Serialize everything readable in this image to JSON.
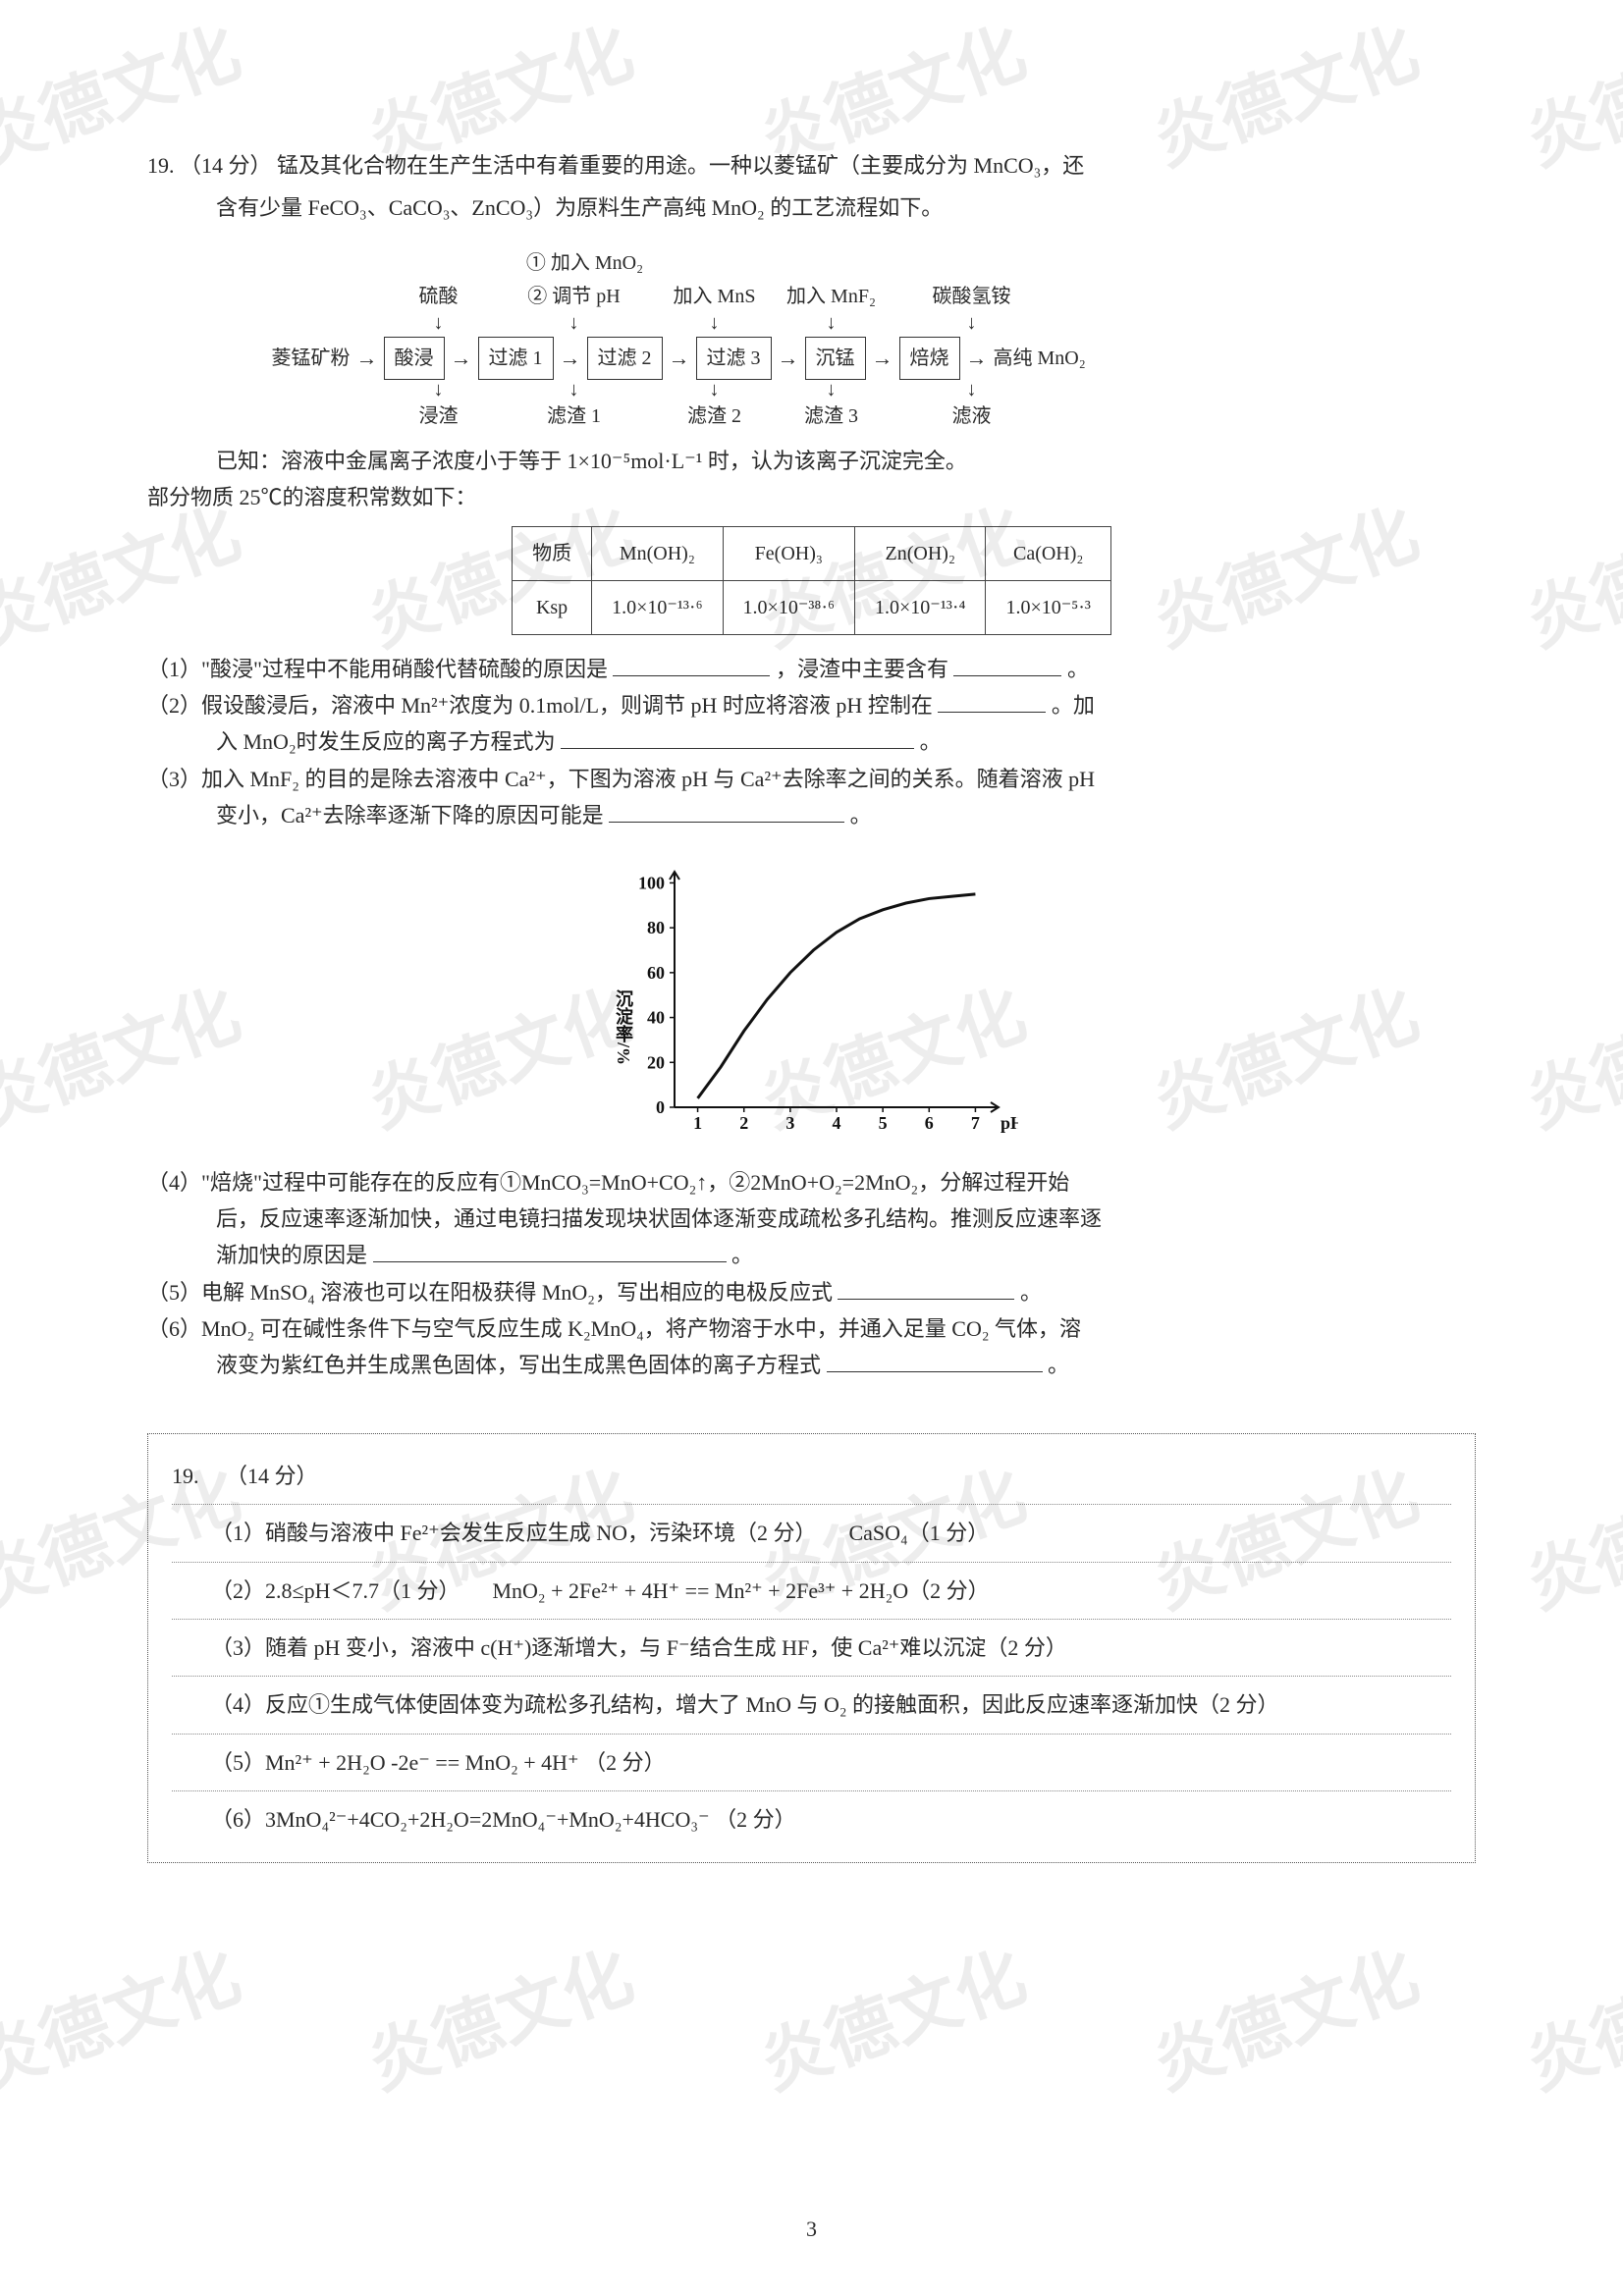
{
  "watermark": {
    "text": "炎德文化"
  },
  "question": {
    "number": "19.",
    "points": "（14 分）",
    "stem1": "锰及其化合物在生产生活中有着重要的用途。一种以菱锰矿（主要成分为 MnCO₃，还",
    "stem2": "含有少量 FeCO₃、CaCO₃、ZnCO₃）为原料生产高纯 MnO₂ 的工艺流程如下。",
    "known1": "已知：溶液中金属离子浓度小于等于 1×10⁻⁵mol·L⁻¹ 时，认为该离子沉淀完全。",
    "known2": "部分物质 25℃的溶度积常数如下：",
    "sub1a": "（1）\"酸浸\"过程中不能用硝酸代替硫酸的原因是",
    "sub1b": "，浸渣中主要含有",
    "sub1c": "。",
    "sub2a": "（2）假设酸浸后，溶液中 Mn²⁺浓度为 0.1mol/L，则调节 pH 时应将溶液 pH 控制在",
    "sub2b": "。加",
    "sub2c": "入 MnO₂时发生反应的离子方程式为",
    "sub2d": "。",
    "sub3a": "（3）加入 MnF₂ 的目的是除去溶液中 Ca²⁺，下图为溶液 pH 与 Ca²⁺去除率之间的关系。随着溶液 pH",
    "sub3b": "变小，Ca²⁺去除率逐渐下降的原因可能是",
    "sub3c": "。",
    "sub4a": "（4）\"焙烧\"过程中可能存在的反应有①MnCO₃=MnO+CO₂↑，②2MnO+O₂=2MnO₂，分解过程开始",
    "sub4b": "后，反应速率逐渐加快，通过电镜扫描发现块状固体逐渐变成疏松多孔结构。推测反应速率逐",
    "sub4c": "渐加快的原因是",
    "sub4d": "。",
    "sub5a": "（5）电解 MnSO₄ 溶液也可以在阳极获得 MnO₂，写出相应的电极反应式",
    "sub5b": "。",
    "sub6a": "（6）MnO₂ 可在碱性条件下与空气反应生成 K₂MnO₄，将产物溶于水中，并通入足量 CO₂ 气体，溶",
    "sub6b": "液变为紫红色并生成黑色固体，写出生成黑色固体的离子方程式",
    "sub6c": "。"
  },
  "flow": {
    "top": {
      "a1": "① 加入 MnO₂",
      "sulfuric": "硫酸",
      "a2": "② 调节 pH",
      "mns": "加入 MnS",
      "mnf2": "加入 MnF₂",
      "nh4hco3": "碳酸氢铵"
    },
    "nodes": {
      "start": "菱锰矿粉",
      "acid": "酸浸",
      "f1": "过滤 1",
      "f2": "过滤 2",
      "f3": "过滤 3",
      "precip": "沉锰",
      "roast": "焙烧",
      "end": "高纯 MnO₂"
    },
    "bottom": {
      "residue": "浸渣",
      "r1": "滤渣 1",
      "r2": "滤渣 2",
      "r3": "滤渣 3",
      "liq": "滤液"
    }
  },
  "ksp_table": {
    "h1": "物质",
    "c1": "Mn(OH)₂",
    "c2": "Fe(OH)₃",
    "c3": "Zn(OH)₂",
    "c4": "Ca(OH)₂",
    "h2": "Ksp",
    "v1": "1.0×10⁻¹³·⁶",
    "v2": "1.0×10⁻³⁸·⁶",
    "v3": "1.0×10⁻¹³·⁴",
    "v4": "1.0×10⁻⁵·³"
  },
  "chart": {
    "ylabel": "沉淀率/%",
    "xlabel": "pH",
    "xticks": [
      "1",
      "2",
      "3",
      "4",
      "5",
      "6",
      "7"
    ],
    "yticks": [
      "0",
      "20",
      "40",
      "60",
      "80",
      "100"
    ],
    "xlim": [
      0.5,
      7.5
    ],
    "ylim": [
      0,
      105
    ],
    "axis_color": "#111111",
    "line_color": "#111111",
    "line_width": 3,
    "aspect": 1.45,
    "points": [
      {
        "x": 1.0,
        "y": 4
      },
      {
        "x": 1.5,
        "y": 18
      },
      {
        "x": 2.0,
        "y": 34
      },
      {
        "x": 2.5,
        "y": 48
      },
      {
        "x": 3.0,
        "y": 60
      },
      {
        "x": 3.5,
        "y": 70
      },
      {
        "x": 4.0,
        "y": 78
      },
      {
        "x": 4.5,
        "y": 84
      },
      {
        "x": 5.0,
        "y": 88
      },
      {
        "x": 5.5,
        "y": 91
      },
      {
        "x": 6.0,
        "y": 93
      },
      {
        "x": 6.5,
        "y": 94
      },
      {
        "x": 7.0,
        "y": 95
      }
    ]
  },
  "answers": {
    "header_num": "19.",
    "header_pts": "（14 分）",
    "a1": "（1）硝酸与溶液中 Fe²⁺会发生反应生成 NO，污染环境（2 分）　　CaSO₄（1 分）",
    "a2": "（2）2.8≤pH＜7.7（1 分）　　MnO₂ + 2Fe²⁺ + 4H⁺ == Mn²⁺ + 2Fe³⁺ + 2H₂O（2 分）",
    "a3": "（3）随着 pH 变小，溶液中 c(H⁺)逐渐增大，与 F⁻结合生成 HF，使 Ca²⁺难以沉淀（2 分）",
    "a4": "（4）反应①生成气体使固体变为疏松多孔结构，增大了 MnO 与 O₂ 的接触面积，因此反应速率逐渐加快（2 分）",
    "a5": "（5）Mn²⁺ + 2H₂O -2e⁻ == MnO₂ + 4H⁺ （2 分）",
    "a6": "（6）3MnO₄²⁻+4CO₂+2H₂O=2MnO₄⁻+MnO₂+4HCO₃⁻ （2 分）"
  },
  "page_number": "3"
}
